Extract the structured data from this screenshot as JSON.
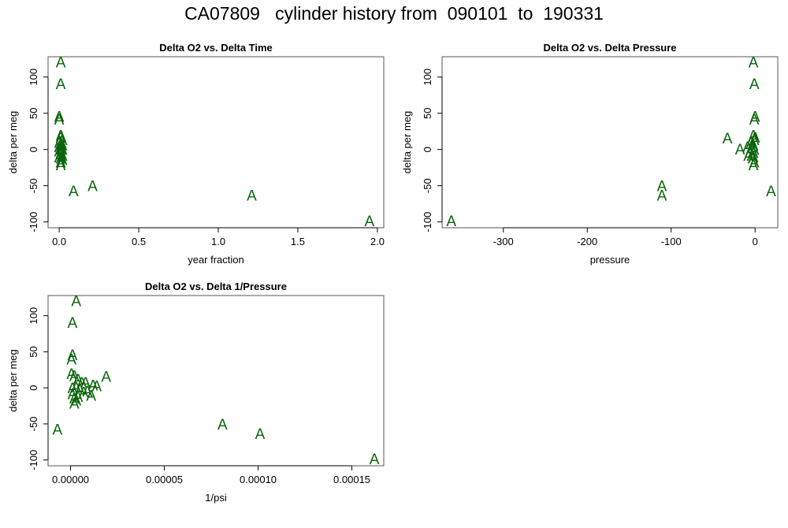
{
  "title": "CA07809   cylinder history from  090101  to  190331",
  "marker": "A",
  "marker_color": "#0a640a",
  "chart_data": [
    {
      "type": "scatter",
      "title": "Delta O2 vs. Delta Time",
      "xlabel": "year fraction",
      "ylabel": "delta per meg",
      "xlim": [
        -0.07,
        2.04
      ],
      "ylim": [
        -108,
        128
      ],
      "xticks": [
        0.0,
        0.5,
        1.0,
        1.5,
        2.0
      ],
      "xtick_labels": [
        "0.0",
        "0.5",
        "1.0",
        "1.5",
        "2.0"
      ],
      "yticks": [
        -100,
        -50,
        0,
        50,
        100
      ],
      "ytick_labels": [
        "-100",
        "-50",
        "0",
        "50",
        "100"
      ],
      "x": [
        0.01,
        0.01,
        0.0,
        0.0,
        0.01,
        0.01,
        0.02,
        0.0,
        0.01,
        0.02,
        0.0,
        0.01,
        0.01,
        0.02,
        0.0,
        0.01,
        0.01,
        0.02,
        0.0,
        0.01,
        0.02,
        0.01,
        0.01,
        0.09,
        0.21,
        1.21,
        1.95
      ],
      "y": [
        121,
        91,
        46,
        42,
        20,
        17,
        14,
        10,
        8,
        6,
        4,
        3,
        1,
        0,
        -2,
        -4,
        -6,
        -8,
        -10,
        -12,
        -14,
        -17,
        -21,
        -57,
        -50,
        -63,
        -98
      ]
    },
    {
      "type": "scatter",
      "title": "Delta O2 vs. Delta Pressure",
      "xlabel": "pressure",
      "ylabel": "delta per meg",
      "xlim": [
        -373,
        27
      ],
      "ylim": [
        -108,
        128
      ],
      "xticks": [
        -300,
        -200,
        -100,
        0
      ],
      "xtick_labels": [
        "-300",
        "-200",
        "-100",
        "0"
      ],
      "yticks": [
        -100,
        -50,
        0,
        50,
        100
      ],
      "ytick_labels": [
        "-100",
        "-50",
        "0",
        "50",
        "100"
      ],
      "x": [
        -2,
        -1,
        0,
        -1,
        -2,
        0,
        -1,
        -5,
        -3,
        -2,
        -9,
        -4,
        -18,
        -1,
        -6,
        -2,
        -33,
        -4,
        -2,
        -3,
        -8,
        -1,
        -2,
        19,
        -111,
        -111,
        -362
      ],
      "y": [
        121,
        91,
        46,
        42,
        20,
        17,
        14,
        10,
        8,
        6,
        4,
        3,
        1,
        0,
        -2,
        -4,
        16,
        -8,
        -10,
        -12,
        -8,
        -17,
        -21,
        -57,
        -50,
        -63,
        -98
      ]
    },
    {
      "type": "scatter",
      "title": "Delta O2 vs. Delta 1/Pressure",
      "xlabel": "1/psi",
      "ylabel": "delta per meg",
      "xlim": [
        -1.2e-05,
        0.000167
      ],
      "ylim": [
        -108,
        128
      ],
      "xticks": [
        0.0,
        5e-05,
        0.0001,
        0.00015
      ],
      "xtick_labels": [
        "0.00000",
        "0.00005",
        "0.00010",
        "0.00015"
      ],
      "yticks": [
        -100,
        -50,
        0,
        50,
        100
      ],
      "ytick_labels": [
        "-100",
        "-50",
        "0",
        "50",
        "100"
      ],
      "x": [
        3e-06,
        1e-06,
        1e-06,
        5e-07,
        5e-07,
        2e-06,
        4e-06,
        6e-06,
        8e-06,
        1.2e-05,
        1.4e-05,
        1.9e-05,
        3e-06,
        1e-06,
        5e-06,
        9e-06,
        7e-06,
        1.1e-05,
        1e-06,
        4e-06,
        2e-06,
        3e-06,
        2e-06,
        -7e-06,
        8.1e-05,
        0.000101,
        0.000162
      ],
      "y": [
        121,
        91,
        46,
        40,
        20,
        17,
        12,
        8,
        8,
        4,
        3,
        16,
        1,
        0,
        -2,
        -4,
        -6,
        -10,
        -8,
        -12,
        -14,
        -17,
        -21,
        -57,
        -50,
        -63,
        -98
      ]
    }
  ]
}
